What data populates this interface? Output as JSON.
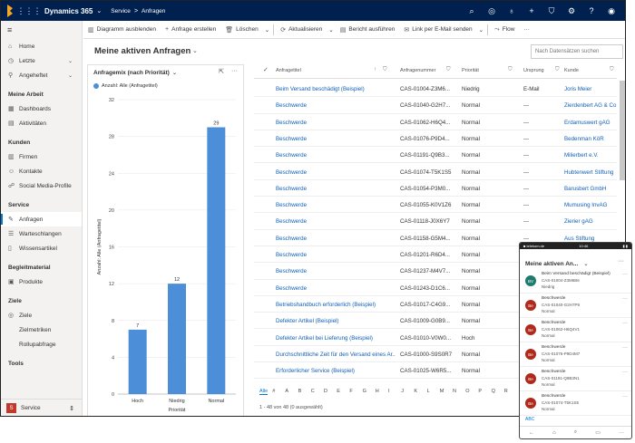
{
  "app": {
    "name": "Dynamics 365",
    "area": "Service",
    "entity": "Anfragen"
  },
  "topbar_icons": [
    "search-icon",
    "target-icon",
    "lightbulb-icon",
    "plus-icon",
    "filter-icon",
    "gear-icon",
    "help-icon",
    "user-icon"
  ],
  "sidebar": {
    "top": [
      {
        "label": "Home",
        "icon": "home-icon"
      },
      {
        "label": "Letzte",
        "icon": "clock-icon",
        "chevron": true
      },
      {
        "label": "Angeheftet",
        "icon": "pin-icon",
        "chevron": true
      }
    ],
    "groups": [
      {
        "title": "Meine Arbeit",
        "items": [
          {
            "label": "Dashboards",
            "icon": "dashboard-icon"
          },
          {
            "label": "Aktivitäten",
            "icon": "activity-icon"
          }
        ]
      },
      {
        "title": "Kunden",
        "items": [
          {
            "label": "Firmen",
            "icon": "building-icon"
          },
          {
            "label": "Kontakte",
            "icon": "contact-icon"
          },
          {
            "label": "Social Media-Profile",
            "icon": "social-icon"
          }
        ]
      },
      {
        "title": "Service",
        "items": [
          {
            "label": "Anfragen",
            "icon": "wrench-icon",
            "active": true
          },
          {
            "label": "Warteschlangen",
            "icon": "queue-icon"
          },
          {
            "label": "Wissensartikel",
            "icon": "book-icon"
          }
        ]
      },
      {
        "title": "Begleitmaterial",
        "items": [
          {
            "label": "Produkte",
            "icon": "box-icon"
          }
        ]
      },
      {
        "title": "Ziele",
        "items": [
          {
            "label": "Ziele",
            "icon": "goal-icon"
          },
          {
            "label": "Zielmetriken",
            "icon": ""
          },
          {
            "label": "Rollupabfrage",
            "icon": ""
          }
        ]
      },
      {
        "title": "Tools",
        "items": []
      }
    ],
    "area_switcher": {
      "badge": "S",
      "label": "Service"
    }
  },
  "commands": [
    {
      "label": "Diagramm ausblenden",
      "icon": "chart-icon"
    },
    {
      "label": "Anfrage erstellen",
      "icon": "plus-icon"
    },
    {
      "label": "Löschen",
      "icon": "trash-icon"
    },
    {
      "label": "Aktualisieren",
      "icon": "refresh-icon"
    },
    {
      "label": "Bericht ausführen",
      "icon": "report-icon"
    },
    {
      "label": "Link per E-Mail senden",
      "icon": "link-icon"
    },
    {
      "label": "Flow",
      "icon": "flow-icon"
    }
  ],
  "view": {
    "title": "Meine aktiven Anfragen",
    "search_placeholder": "Nach Datensätzen suchen"
  },
  "chart_panel": {
    "title": "Anfragemix (nach Priorität)",
    "legend": "Anzahl: Alle (Anfragetitel)"
  },
  "chart_data": {
    "type": "bar",
    "categories": [
      "Hoch",
      "Niedrig",
      "Normal"
    ],
    "values": [
      7,
      12,
      29
    ],
    "xlabel": "Priorität",
    "ylabel": "Anzahl: Alle (Anfragetitel)",
    "ylim": [
      0,
      32
    ],
    "yticks": [
      0,
      4,
      8,
      12,
      16,
      20,
      24,
      28,
      32
    ],
    "color": "#4c8fd8",
    "grid": true
  },
  "grid": {
    "columns": [
      "Anfragetitel",
      "Anfragenummer",
      "Priorität",
      "Ursprung",
      "Kunde"
    ],
    "rows": [
      [
        "Beim Versand beschädigt (Beispiel)",
        "CAS-01004-Z3M6...",
        "Niedrig",
        "E-Mail",
        "Joris Meier"
      ],
      [
        "Beschwerde",
        "CAS-01040-G2H7...",
        "Normal",
        "---",
        "Zierdenbert AG & Co"
      ],
      [
        "Beschwerde",
        "CAS-01062-H6Q4...",
        "Normal",
        "---",
        "Erdamuswert gAG"
      ],
      [
        "Beschwerde",
        "CAS-01076-P9D4...",
        "Normal",
        "---",
        "Bedenman KöR"
      ],
      [
        "Beschwerde",
        "CAS-01191-Q9B3...",
        "Normal",
        "---",
        "Milierbert e.V."
      ],
      [
        "Beschwerde",
        "CAS-01074-T5K1S5",
        "Normal",
        "---",
        "Hubtenwert Stiftung"
      ],
      [
        "Beschwerde",
        "CAS-01054-P3M0...",
        "Normal",
        "---",
        "Barusbert GmbH"
      ],
      [
        "Beschwerde",
        "CAS-01055-K0V1Z6",
        "Normal",
        "---",
        "Mumusing InvAG"
      ],
      [
        "Beschwerde",
        "CAS-01118-J0X6Y7",
        "Normal",
        "---",
        "Zierier gAG"
      ],
      [
        "Beschwerde",
        "CAS-01158-G5M4...",
        "Normal",
        "---",
        "Aus Stiftung"
      ],
      [
        "Beschwerde",
        "CAS-01201-R6D4...",
        "Normal",
        "---",
        ""
      ],
      [
        "Beschwerde",
        "CAS-01237-M4V7...",
        "Normal",
        "---",
        ""
      ],
      [
        "Beschwerde",
        "CAS-01243-D1C6...",
        "Normal",
        "---",
        ""
      ],
      [
        "Betriebshandbuch erforderlich (Beispiel)",
        "CAS-01017-C4G9...",
        "Normal",
        "---",
        ""
      ],
      [
        "Defekter Artikel (Beispiel)",
        "CAS-01009-G0B9...",
        "Normal",
        "---",
        ""
      ],
      [
        "Defekter Artikel bei Lieferung (Beispiel)",
        "CAS-01010-V0W0...",
        "Hoch",
        "---",
        ""
      ],
      [
        "Durchschnittliche Zeit für den Versand eines Ar...",
        "CAS-01000-S9S0R7",
        "Normal",
        "---",
        ""
      ],
      [
        "Erforderlicher Service (Beispiel)",
        "CAS-01025-W6R5...",
        "Normal",
        "---",
        ""
      ]
    ],
    "alphabet": [
      "Alle",
      "#",
      "A",
      "B",
      "C",
      "D",
      "E",
      "F",
      "G",
      "H",
      "I",
      "J",
      "K",
      "L",
      "M",
      "N",
      "O",
      "P",
      "Q",
      "R"
    ],
    "footer": "1 - 48 von 48 (0 ausgewählt)"
  },
  "mobile": {
    "status_left": "■ telekom.de",
    "status_time": "10:46",
    "status_right": "▮ ▮",
    "title": "Meine aktiven An...",
    "items": [
      {
        "initials": "BV",
        "color": "#1e7b6e",
        "title": "Beim Versand beschädigt (Beispiel)",
        "number": "CAS-01004-Z3M6B6",
        "priority": "Niedrig"
      },
      {
        "initials": "Be",
        "color": "#b02a1c",
        "title": "Beschwerde",
        "number": "CAS-01040-G2H7P9",
        "priority": "Normal"
      },
      {
        "initials": "Be",
        "color": "#b02a1c",
        "title": "Beschwerde",
        "number": "CAS-01062-H6Q4V1",
        "priority": "Normal"
      },
      {
        "initials": "Be",
        "color": "#b02a1c",
        "title": "Beschwerde",
        "number": "CAS-01076-P9D4M7",
        "priority": "Normal"
      },
      {
        "initials": "Be",
        "color": "#b02a1c",
        "title": "Beschwerde",
        "number": "CAS-01191-Q9B3N1",
        "priority": "Normal"
      },
      {
        "initials": "Be",
        "color": "#b02a1c",
        "title": "Beschwerde",
        "number": "CAS-01074-T5K1S5",
        "priority": "Normal"
      }
    ],
    "footer_label": "ABC"
  }
}
